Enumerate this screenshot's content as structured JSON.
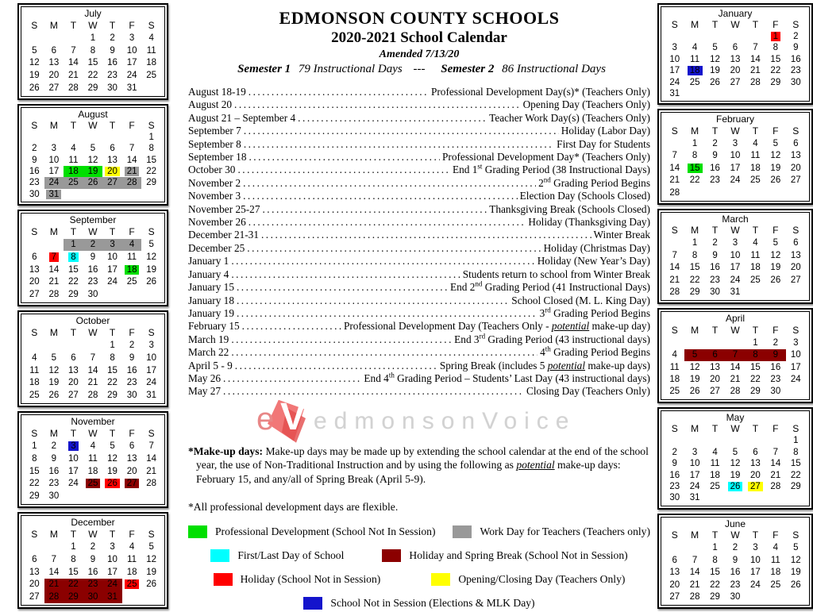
{
  "header": {
    "title": "EDMONSON COUNTY SCHOOLS",
    "subtitle": "2020-2021 School Calendar",
    "amended": "Amended 7/13/20",
    "semester1_label": "Semester 1",
    "semester1_days": "79 Instructional Days",
    "separator": "---",
    "semester2_label": "Semester 2",
    "semester2_days": "86 Instructional Days"
  },
  "calendar": {
    "day_headers": [
      "S",
      "M",
      "T",
      "W",
      "T",
      "F",
      "S"
    ],
    "colors": {
      "green": "#00DF00",
      "yellow": "#FFFF00",
      "cyan": "#00FFFF",
      "red": "#FF0000",
      "maroon": "#8B0000",
      "blue": "#1414CC",
      "gray": "#999999"
    },
    "left_months": [
      {
        "name": "July",
        "start": 3,
        "days": 31,
        "highlights": {}
      },
      {
        "name": "August",
        "start": 6,
        "days": 31,
        "highlights": {
          "18": {
            "c": "green",
            "t": "r"
          },
          "19": {
            "c": "green",
            "t": "r"
          },
          "20": {
            "c": "yellow",
            "t": "s"
          },
          "21": {
            "c": "gray",
            "t": "s"
          },
          "24": {
            "c": "gray",
            "t": "r"
          },
          "25": {
            "c": "gray",
            "t": "r"
          },
          "26": {
            "c": "gray",
            "t": "r"
          },
          "27": {
            "c": "gray",
            "t": "r"
          },
          "28": {
            "c": "gray",
            "t": "r"
          },
          "31": {
            "c": "gray",
            "t": "s"
          }
        }
      },
      {
        "name": "September",
        "start": 2,
        "days": 30,
        "highlights": {
          "1": {
            "c": "gray",
            "t": "r"
          },
          "2": {
            "c": "gray",
            "t": "r"
          },
          "3": {
            "c": "gray",
            "t": "r"
          },
          "4": {
            "c": "gray",
            "t": "r"
          },
          "7": {
            "c": "red",
            "t": "s"
          },
          "8": {
            "c": "cyan",
            "t": "s"
          },
          "18": {
            "c": "green",
            "t": "s"
          }
        }
      },
      {
        "name": "October",
        "start": 4,
        "days": 31,
        "highlights": {}
      },
      {
        "name": "November",
        "start": 0,
        "days": 30,
        "highlights": {
          "3": {
            "c": "blue",
            "t": "s"
          },
          "25": {
            "c": "maroon",
            "t": "s"
          },
          "26": {
            "c": "red",
            "t": "s"
          },
          "27": {
            "c": "maroon",
            "t": "s"
          }
        }
      },
      {
        "name": "December",
        "start": 2,
        "days": 31,
        "highlights": {
          "21": {
            "c": "maroon",
            "t": "r"
          },
          "22": {
            "c": "maroon",
            "t": "r"
          },
          "23": {
            "c": "maroon",
            "t": "r"
          },
          "24": {
            "c": "maroon",
            "t": "r"
          },
          "25": {
            "c": "red",
            "t": "s"
          },
          "28": {
            "c": "maroon",
            "t": "r"
          },
          "29": {
            "c": "maroon",
            "t": "r"
          },
          "30": {
            "c": "maroon",
            "t": "r"
          },
          "31": {
            "c": "maroon",
            "t": "r"
          }
        }
      }
    ],
    "right_months": [
      {
        "name": "January",
        "start": 5,
        "days": 31,
        "highlights": {
          "1": {
            "c": "red",
            "t": "s"
          },
          "18": {
            "c": "blue",
            "t": "s"
          }
        }
      },
      {
        "name": "February",
        "start": 1,
        "days": 28,
        "highlights": {
          "15": {
            "c": "green",
            "t": "s"
          }
        }
      },
      {
        "name": "March",
        "start": 1,
        "days": 31,
        "highlights": {}
      },
      {
        "name": "April",
        "start": 4,
        "days": 30,
        "highlights": {
          "5": {
            "c": "maroon",
            "t": "r"
          },
          "6": {
            "c": "maroon",
            "t": "r"
          },
          "7": {
            "c": "maroon",
            "t": "r"
          },
          "8": {
            "c": "maroon",
            "t": "r"
          },
          "9": {
            "c": "maroon",
            "t": "r"
          }
        }
      },
      {
        "name": "May",
        "start": 6,
        "days": 31,
        "highlights": {
          "26": {
            "c": "cyan",
            "t": "s"
          },
          "27": {
            "c": "yellow",
            "t": "s"
          }
        }
      },
      {
        "name": "June",
        "start": 2,
        "days": 30,
        "highlights": {}
      }
    ]
  },
  "events": [
    {
      "date": "August 18-19",
      "desc": "Professional Development Day(s)* (Teachers Only)"
    },
    {
      "date": "August 20",
      "desc": "Opening Day (Teachers Only)"
    },
    {
      "date": "August 21 – September 4",
      "desc": "Teacher Work Day(s) (Teachers Only)"
    },
    {
      "date": "September 7",
      "desc": "Holiday (Labor Day)"
    },
    {
      "date": "September 8",
      "desc": "First Day for Students"
    },
    {
      "date": "September 18",
      "desc": "Professional Development Day* (Teachers Only)"
    },
    {
      "date": "October 30",
      "desc": "End 1st Grading Period (38 Instructional Days)"
    },
    {
      "date": "November 2",
      "desc": "2nd Grading Period Begins"
    },
    {
      "date": "November 3",
      "desc": "Election Day (Schools Closed)"
    },
    {
      "date": "November 25-27",
      "desc": "Thanksgiving Break (Schools Closed)"
    },
    {
      "date": "November 26",
      "desc": "Holiday (Thanksgiving Day)"
    },
    {
      "date": "December 21-31",
      "desc": "Winter Break"
    },
    {
      "date": "December 25",
      "desc": "Holiday (Christmas Day)"
    },
    {
      "date": "January 1",
      "desc": "Holiday (New Year’s Day)"
    },
    {
      "date": "January 4",
      "desc": "Students return to school from Winter Break"
    },
    {
      "date": "January 15",
      "desc": "End 2nd Grading Period (41 Instructional Days)"
    },
    {
      "date": "January 18",
      "desc": "School Closed (M. L. King Day)"
    },
    {
      "date": "January 19",
      "desc": "3rd Grading Period Begins"
    },
    {
      "date": "February 15",
      "desc": "Professional Development Day (Teachers Only - _potential_ make-up day)"
    },
    {
      "date": "March 19",
      "desc": "End 3rd Grading Period (43 instructional days)"
    },
    {
      "date": "March 22",
      "desc": "4th Grading Period Begins"
    },
    {
      "date": "April 5 - 9",
      "desc": "Spring Break (includes 5 _potential_ make-up days)"
    },
    {
      "date": "May 26",
      "desc": "End 4th Grading Period – Students’ Last Day (43 instructional days)"
    },
    {
      "date": "May 27",
      "desc": "Closing Day (Teachers Only)"
    }
  ],
  "watermark": {
    "logo_e": "e",
    "logo_v": "V",
    "text": "edmonsonVoice"
  },
  "notes": {
    "makeup_label": "*Make-up days:",
    "makeup_text": " Make-up days may be made up by extending the school calendar at the end of the school year, the use of Non-Traditional Instruction and by using the following as _potential_ make-up days:  February 15, and any/all of Spring Break (April 5-9).",
    "flexible": "*All professional development days are flexible."
  },
  "legend": {
    "rows": [
      [
        {
          "color": "green",
          "label": "Professional Development (School Not In Session)"
        },
        {
          "color": "gray",
          "label": "Work Day for Teachers (Teachers only)"
        }
      ],
      [
        {
          "color": "cyan",
          "label": "First/Last Day of School"
        },
        {
          "color": "maroon",
          "label": "Holiday and Spring Break (School Not in Session)"
        }
      ],
      [
        {
          "color": "red",
          "label": "Holiday (School Not in Session)"
        },
        {
          "color": "yellow",
          "label": "Opening/Closing Day (Teachers Only)"
        }
      ],
      [
        {
          "color": "blue",
          "label": "School Not in Session (Elections & MLK Day)"
        }
      ]
    ]
  }
}
